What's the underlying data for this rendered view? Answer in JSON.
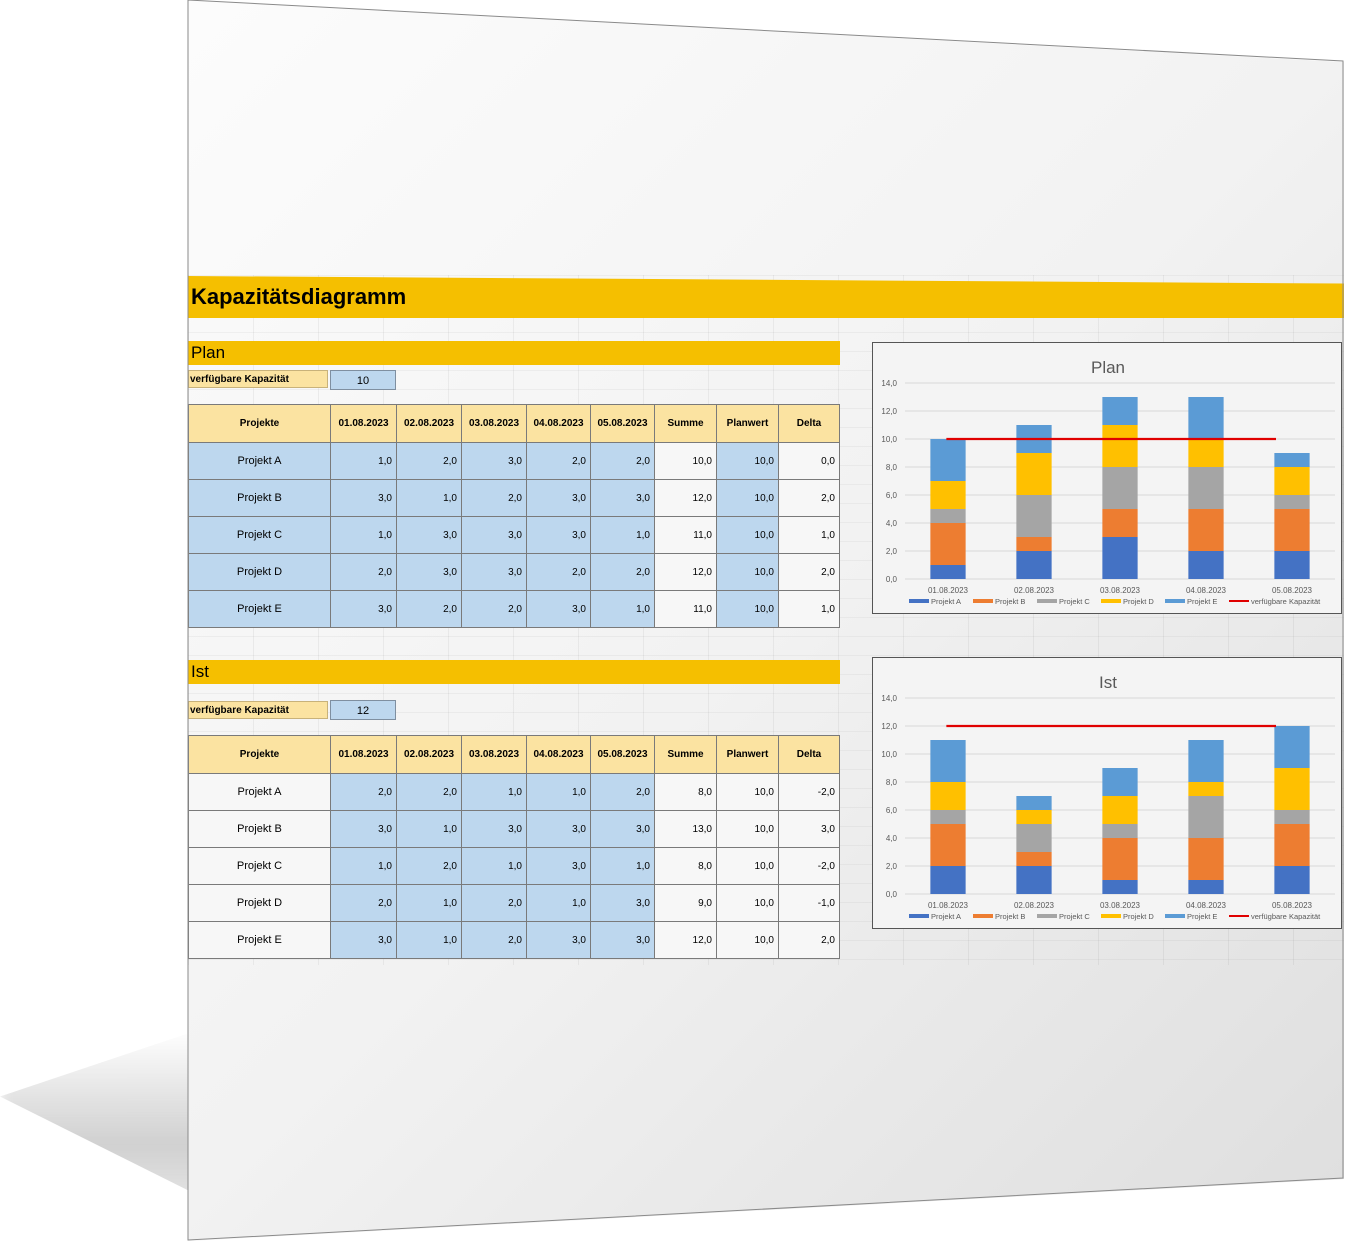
{
  "title": "Kapazitätsdiagramm",
  "dates": [
    "01.08.2023",
    "02.08.2023",
    "03.08.2023",
    "04.08.2023",
    "05.08.2023"
  ],
  "columns": {
    "project": "Projekte",
    "summe": "Summe",
    "planwert": "Planwert",
    "delta": "Delta"
  },
  "capacity_label": "verfügbare Kapazität",
  "plan": {
    "heading": "Plan",
    "capacity": "10",
    "rows": [
      {
        "name": "Projekt A",
        "values": [
          "1,0",
          "2,0",
          "3,0",
          "2,0",
          "2,0"
        ],
        "summe": "10,0",
        "planwert": "10,0",
        "delta": "0,0"
      },
      {
        "name": "Projekt B",
        "values": [
          "3,0",
          "1,0",
          "2,0",
          "3,0",
          "3,0"
        ],
        "summe": "12,0",
        "planwert": "10,0",
        "delta": "2,0"
      },
      {
        "name": "Projekt C",
        "values": [
          "1,0",
          "3,0",
          "3,0",
          "3,0",
          "1,0"
        ],
        "summe": "11,0",
        "planwert": "10,0",
        "delta": "1,0"
      },
      {
        "name": "Projekt D",
        "values": [
          "2,0",
          "3,0",
          "3,0",
          "2,0",
          "2,0"
        ],
        "summe": "12,0",
        "planwert": "10,0",
        "delta": "2,0"
      },
      {
        "name": "Projekt E",
        "values": [
          "3,0",
          "2,0",
          "2,0",
          "3,0",
          "1,0"
        ],
        "summe": "11,0",
        "planwert": "10,0",
        "delta": "1,0"
      }
    ]
  },
  "ist": {
    "heading": "Ist",
    "capacity": "12",
    "rows": [
      {
        "name": "Projekt A",
        "values": [
          "2,0",
          "2,0",
          "1,0",
          "1,0",
          "2,0"
        ],
        "summe": "8,0",
        "planwert": "10,0",
        "delta": "-2,0"
      },
      {
        "name": "Projekt B",
        "values": [
          "3,0",
          "1,0",
          "3,0",
          "3,0",
          "3,0"
        ],
        "summe": "13,0",
        "planwert": "10,0",
        "delta": "3,0"
      },
      {
        "name": "Projekt C",
        "values": [
          "1,0",
          "2,0",
          "1,0",
          "3,0",
          "1,0"
        ],
        "summe": "8,0",
        "planwert": "10,0",
        "delta": "-2,0"
      },
      {
        "name": "Projekt D",
        "values": [
          "2,0",
          "1,0",
          "2,0",
          "1,0",
          "3,0"
        ],
        "summe": "9,0",
        "planwert": "10,0",
        "delta": "-1,0"
      },
      {
        "name": "Projekt E",
        "values": [
          "3,0",
          "1,0",
          "2,0",
          "3,0",
          "3,0"
        ],
        "summe": "12,0",
        "planwert": "10,0",
        "delta": "2,0"
      }
    ]
  },
  "chart_data": [
    {
      "type": "bar",
      "title": "Plan",
      "stacked": true,
      "categories": [
        "01.08.2023",
        "02.08.2023",
        "03.08.2023",
        "04.08.2023",
        "05.08.2023"
      ],
      "series": [
        {
          "name": "Projekt A",
          "color": "#4472c4",
          "values": [
            1,
            2,
            3,
            2,
            2
          ]
        },
        {
          "name": "Projekt B",
          "color": "#ed7d31",
          "values": [
            3,
            1,
            2,
            3,
            3
          ]
        },
        {
          "name": "Projekt C",
          "color": "#a5a5a5",
          "values": [
            1,
            3,
            3,
            3,
            1
          ]
        },
        {
          "name": "Projekt D",
          "color": "#ffc000",
          "values": [
            2,
            3,
            3,
            2,
            2
          ]
        },
        {
          "name": "Projekt E",
          "color": "#5b9bd5",
          "values": [
            3,
            2,
            2,
            3,
            1
          ]
        }
      ],
      "line": {
        "name": "verfügbare Kapazität",
        "color": "#e00000",
        "value": 10
      },
      "ylim": [
        0,
        14
      ],
      "yticks": [
        "0,0",
        "2,0",
        "4,0",
        "6,0",
        "8,0",
        "10,0",
        "12,0",
        "14,0"
      ],
      "legend": "bottom"
    },
    {
      "type": "bar",
      "title": "Ist",
      "stacked": true,
      "categories": [
        "01.08.2023",
        "02.08.2023",
        "03.08.2023",
        "04.08.2023",
        "05.08.2023"
      ],
      "series": [
        {
          "name": "Projekt A",
          "color": "#4472c4",
          "values": [
            2,
            2,
            1,
            1,
            2
          ]
        },
        {
          "name": "Projekt B",
          "color": "#ed7d31",
          "values": [
            3,
            1,
            3,
            3,
            3
          ]
        },
        {
          "name": "Projekt C",
          "color": "#a5a5a5",
          "values": [
            1,
            2,
            1,
            3,
            1
          ]
        },
        {
          "name": "Projekt D",
          "color": "#ffc000",
          "values": [
            2,
            1,
            2,
            1,
            3
          ]
        },
        {
          "name": "Projekt E",
          "color": "#5b9bd5",
          "values": [
            3,
            1,
            2,
            3,
            3
          ]
        }
      ],
      "line": {
        "name": "verfügbare Kapazität",
        "color": "#e00000",
        "value": 12
      },
      "ylim": [
        0,
        14
      ],
      "yticks": [
        "0,0",
        "2,0",
        "4,0",
        "6,0",
        "8,0",
        "10,0",
        "12,0",
        "14,0"
      ],
      "legend": "bottom"
    }
  ]
}
